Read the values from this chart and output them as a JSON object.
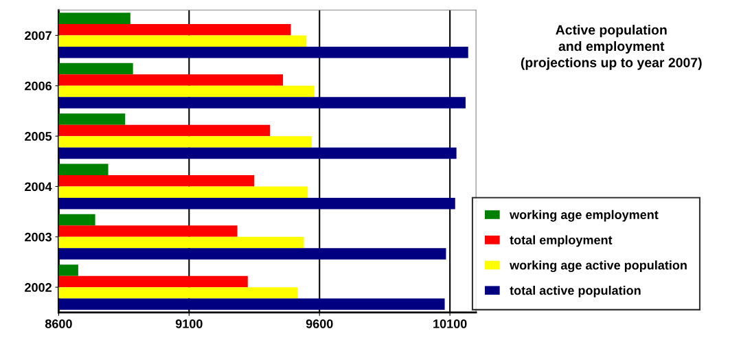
{
  "chart_data": {
    "type": "bar",
    "orientation": "horizontal",
    "title": "Active population\nand employment\n(projections up to year 2007)",
    "categories": [
      "2007",
      "2006",
      "2005",
      "2004",
      "2003",
      "2002"
    ],
    "series": [
      {
        "name": "working age employment",
        "color": "#008000",
        "values": [
          8875,
          8885,
          8855,
          8790,
          8740,
          8675
        ]
      },
      {
        "name": "total employment",
        "color": "#ff0000",
        "values": [
          9490,
          9460,
          9410,
          9350,
          9285,
          9325
        ]
      },
      {
        "name": "working age active population",
        "color": "#ffff00",
        "values": [
          9550,
          9580,
          9570,
          9555,
          9540,
          9515
        ]
      },
      {
        "name": "total active population",
        "color": "#000080",
        "values": [
          10170,
          10160,
          10125,
          10120,
          10085,
          10080
        ]
      }
    ],
    "xlim": [
      8600,
      10200
    ],
    "xticks": [
      8600,
      9100,
      9600,
      10100
    ],
    "grid": "x",
    "legend": "right"
  }
}
